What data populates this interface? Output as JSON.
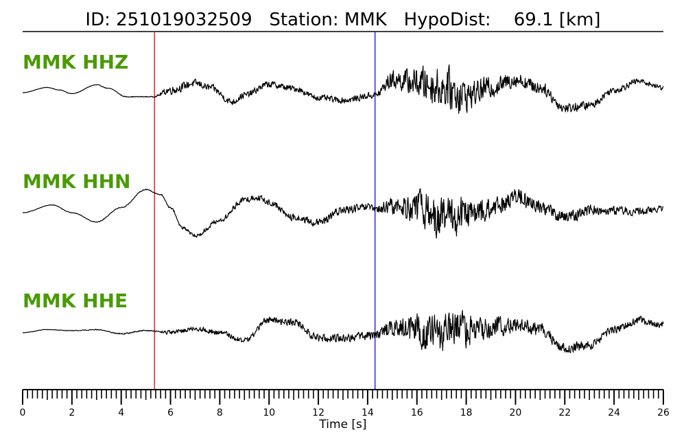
{
  "title": {
    "text": "ID: 251019032509   Station: MMK   HypoDist:    69.1 [km]",
    "id": "251019032509",
    "station": "MMK",
    "hypo_dist_km": 69.1
  },
  "colors": {
    "trace": "#000000",
    "channel_label": "#4a9a06",
    "p_pick": "#e8141c",
    "s_pick": "#1c1cd8",
    "axis": "#000000"
  },
  "chart_data": {
    "type": "line",
    "xlabel": "Time [s]",
    "ylabel": "",
    "xlim": [
      0,
      26
    ],
    "x_major_ticks": [
      0,
      2,
      4,
      6,
      8,
      10,
      12,
      14,
      16,
      18,
      20,
      22,
      24,
      26
    ],
    "x_tick_labels": [
      "0",
      "2",
      "4",
      "6",
      "8",
      "10",
      "12",
      "14",
      "16",
      "18",
      "20",
      "22",
      "24",
      "26"
    ],
    "x_minor_tick_step": 0.2,
    "grid": false,
    "legend": "none",
    "picks": [
      {
        "name": "P",
        "time": 5.35,
        "color": "#e8141c"
      },
      {
        "name": "S",
        "time": 14.3,
        "color": "#1c1cd8"
      }
    ],
    "series": [
      {
        "name": "MMK HHZ",
        "keypoints": [
          [
            0,
            0
          ],
          [
            1,
            0.1
          ],
          [
            1.5,
            0.05
          ],
          [
            2,
            -0.02
          ],
          [
            3,
            0.15
          ],
          [
            3.5,
            0.08
          ],
          [
            4.2,
            -0.08
          ],
          [
            5.3,
            -0.08
          ],
          [
            6,
            0.05
          ],
          [
            7,
            0.18
          ],
          [
            7.6,
            0.1
          ],
          [
            8.5,
            -0.18
          ],
          [
            9,
            -0.05
          ],
          [
            10,
            0.16
          ],
          [
            11,
            0.08
          ],
          [
            12,
            -0.1
          ],
          [
            13,
            -0.15
          ],
          [
            14.3,
            -0.05
          ],
          [
            15,
            0.25
          ],
          [
            16,
            0.2
          ],
          [
            17,
            0.1
          ],
          [
            18,
            -0.05
          ],
          [
            19,
            0.1
          ],
          [
            20,
            0.25
          ],
          [
            21,
            0.1
          ],
          [
            22,
            -0.3
          ],
          [
            23,
            -0.25
          ],
          [
            24,
            0.05
          ],
          [
            25,
            0.22
          ],
          [
            26,
            0.1
          ]
        ],
        "noise": [
          [
            0,
            0.004
          ],
          [
            5.3,
            0.01
          ],
          [
            6,
            0.1
          ],
          [
            8,
            0.08
          ],
          [
            10,
            0.08
          ],
          [
            12,
            0.07
          ],
          [
            14.3,
            0.08
          ],
          [
            15,
            0.22
          ],
          [
            16.5,
            0.42
          ],
          [
            17.5,
            0.5
          ],
          [
            18.5,
            0.28
          ],
          [
            20,
            0.18
          ],
          [
            22,
            0.12
          ],
          [
            24,
            0.08
          ],
          [
            26,
            0.06
          ]
        ],
        "amplitude": 75
      },
      {
        "name": "MMK HHN",
        "keypoints": [
          [
            0,
            0
          ],
          [
            1.2,
            0.15
          ],
          [
            2,
            0
          ],
          [
            3,
            -0.18
          ],
          [
            4,
            0.1
          ],
          [
            5,
            0.45
          ],
          [
            5.6,
            0.35
          ],
          [
            6,
            0.1
          ],
          [
            6.5,
            -0.3
          ],
          [
            7,
            -0.45
          ],
          [
            8,
            -0.15
          ],
          [
            9,
            0.25
          ],
          [
            9.5,
            0.3
          ],
          [
            10,
            0.2
          ],
          [
            11,
            -0.1
          ],
          [
            12,
            -0.2
          ],
          [
            13,
            0.05
          ],
          [
            14,
            0.1
          ],
          [
            14.3,
            0.05
          ],
          [
            15,
            0.12
          ],
          [
            16,
            0.1
          ],
          [
            17,
            -0.1
          ],
          [
            18,
            -0.05
          ],
          [
            19,
            0.05
          ],
          [
            20,
            0.3
          ],
          [
            21,
            0.12
          ],
          [
            22,
            -0.1
          ],
          [
            23,
            0.05
          ],
          [
            24,
            0.05
          ],
          [
            25,
            0.02
          ],
          [
            26,
            0.08
          ]
        ],
        "noise": [
          [
            0,
            0.005
          ],
          [
            5.3,
            0.012
          ],
          [
            6,
            0.03
          ],
          [
            8,
            0.06
          ],
          [
            10,
            0.08
          ],
          [
            12,
            0.09
          ],
          [
            14.3,
            0.1
          ],
          [
            15,
            0.2
          ],
          [
            16.5,
            0.45
          ],
          [
            17.5,
            0.5
          ],
          [
            18.5,
            0.3
          ],
          [
            20,
            0.2
          ],
          [
            22,
            0.15
          ],
          [
            24,
            0.1
          ],
          [
            26,
            0.08
          ]
        ],
        "amplitude": 75
      },
      {
        "name": "MMK HHE",
        "keypoints": [
          [
            0,
            0
          ],
          [
            1,
            0.06
          ],
          [
            2,
            0.04
          ],
          [
            3,
            0.06
          ],
          [
            4,
            -0.02
          ],
          [
            5,
            0.04
          ],
          [
            6,
            0.0
          ],
          [
            7,
            0.08
          ],
          [
            8,
            0.0
          ],
          [
            9,
            -0.15
          ],
          [
            10,
            0.25
          ],
          [
            11,
            0.2
          ],
          [
            12,
            -0.1
          ],
          [
            13,
            -0.1
          ],
          [
            14.3,
            -0.05
          ],
          [
            15,
            0.1
          ],
          [
            16,
            0.05
          ],
          [
            17,
            -0.05
          ],
          [
            18,
            0.05
          ],
          [
            19,
            0.1
          ],
          [
            20,
            0.15
          ],
          [
            21,
            0.05
          ],
          [
            22,
            -0.3
          ],
          [
            23,
            -0.25
          ],
          [
            24,
            0.05
          ],
          [
            25,
            0.25
          ],
          [
            26,
            0.15
          ]
        ],
        "noise": [
          [
            0,
            0.005
          ],
          [
            5.3,
            0.015
          ],
          [
            6,
            0.05
          ],
          [
            8,
            0.06
          ],
          [
            10,
            0.08
          ],
          [
            12,
            0.09
          ],
          [
            14.3,
            0.1
          ],
          [
            15,
            0.2
          ],
          [
            16.5,
            0.45
          ],
          [
            17.5,
            0.5
          ],
          [
            18.5,
            0.3
          ],
          [
            20,
            0.18
          ],
          [
            22,
            0.12
          ],
          [
            24,
            0.1
          ],
          [
            26,
            0.08
          ]
        ],
        "amplitude": 75
      }
    ]
  }
}
